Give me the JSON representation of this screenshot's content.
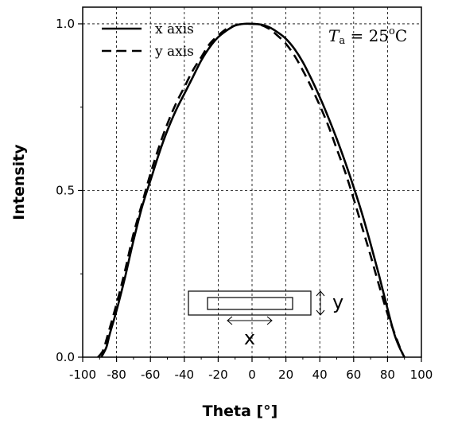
{
  "chart_data": {
    "type": "line",
    "xlabel": "Theta [°]",
    "ylabel": "Intensity",
    "xlim": [
      -100,
      100
    ],
    "ylim": [
      0.0,
      1.05
    ],
    "xticks": [
      -100,
      -80,
      -60,
      -40,
      -20,
      0,
      20,
      40,
      60,
      80,
      100
    ],
    "yticks": [
      "0.0",
      "0.5",
      "1.0"
    ],
    "grid": true,
    "legend_position": "top-left",
    "annotation": {
      "italic": "T",
      "subscript": "a",
      "text": " = 25",
      "superscript": "o",
      "unit": "C"
    },
    "inset": {
      "y_label": "y",
      "x_label": "x"
    },
    "series": [
      {
        "name": "x axis",
        "style": "solid",
        "x": [
          -89,
          -86,
          -84,
          -80,
          -75,
          -70,
          -65,
          -60,
          -55,
          -50,
          -45,
          -40,
          -35,
          -30,
          -25,
          -20,
          -15,
          -10,
          -5,
          0,
          5,
          10,
          15,
          20,
          25,
          30,
          35,
          40,
          45,
          50,
          55,
          60,
          65,
          70,
          75,
          80,
          84,
          87,
          89
        ],
        "y": [
          0.0,
          0.03,
          0.07,
          0.14,
          0.24,
          0.35,
          0.45,
          0.53,
          0.61,
          0.68,
          0.74,
          0.79,
          0.84,
          0.89,
          0.93,
          0.96,
          0.98,
          0.995,
          1.0,
          1.0,
          0.998,
          0.99,
          0.975,
          0.955,
          0.925,
          0.885,
          0.835,
          0.78,
          0.72,
          0.655,
          0.585,
          0.51,
          0.43,
          0.34,
          0.245,
          0.145,
          0.07,
          0.03,
          0.01
        ]
      },
      {
        "name": "y axis",
        "style": "dashed",
        "x": [
          -91,
          -88,
          -85,
          -80,
          -75,
          -70,
          -65,
          -60,
          -55,
          -50,
          -45,
          -40,
          -35,
          -30,
          -25,
          -20,
          -15,
          -10,
          -5,
          0,
          5,
          10,
          15,
          20,
          25,
          30,
          35,
          40,
          45,
          50,
          55,
          60,
          65,
          70,
          75,
          80,
          85,
          88,
          90
        ],
        "y": [
          0.0,
          0.02,
          0.07,
          0.16,
          0.26,
          0.37,
          0.46,
          0.55,
          0.63,
          0.7,
          0.76,
          0.81,
          0.86,
          0.9,
          0.94,
          0.965,
          0.985,
          0.995,
          1.0,
          1.0,
          0.997,
          0.985,
          0.965,
          0.94,
          0.905,
          0.86,
          0.81,
          0.755,
          0.695,
          0.625,
          0.555,
          0.475,
          0.39,
          0.305,
          0.215,
          0.13,
          0.06,
          0.02,
          0.0
        ]
      }
    ]
  }
}
